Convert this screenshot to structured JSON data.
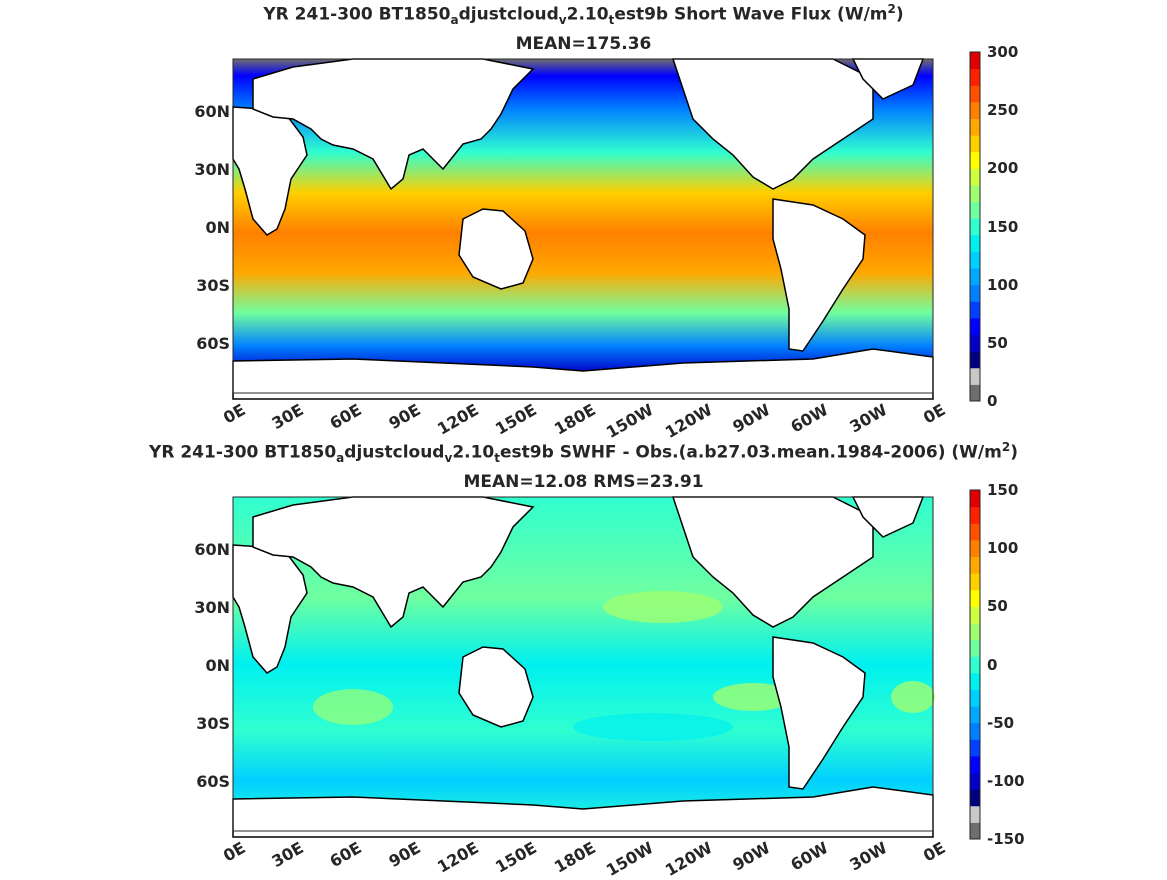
{
  "panels": [
    {
      "title_parts": [
        "YR 241-300 BT1850",
        "a",
        "djustcloud",
        "v",
        "2.10",
        "t",
        "est9b  Short Wave Flux (W/m",
        "2",
        ")"
      ],
      "subtitle": "MEAN=175.36",
      "lat_labels": [
        "60N",
        "30N",
        "0N",
        "30S",
        "60S"
      ],
      "lon_labels": [
        "0E",
        "30E",
        "60E",
        "90E",
        "120E",
        "150E",
        "180E",
        "150W",
        "120W",
        "90W",
        "60W",
        "30W",
        "0E"
      ],
      "colorbar_labels": [
        "300",
        "250",
        "200",
        "150",
        "100",
        "50",
        "0"
      ]
    },
    {
      "title_parts": [
        "YR 241-300 BT1850",
        "a",
        "djustcloud",
        "v",
        "2.10",
        "t",
        "est9b SWHF - Obs.(a.b27.03.mean.1984-2006) (W/m",
        "2",
        ")"
      ],
      "subtitle": "MEAN=12.08 RMS=23.91",
      "lat_labels": [
        "60N",
        "30N",
        "0N",
        "30S",
        "60S"
      ],
      "lon_labels": [
        "0E",
        "30E",
        "60E",
        "90E",
        "120E",
        "150E",
        "180E",
        "150W",
        "120W",
        "90W",
        "60W",
        "30W",
        "0E"
      ],
      "colorbar_labels": [
        "150",
        "100",
        "50",
        "0",
        "-50",
        "-100",
        "-150"
      ]
    }
  ],
  "colors": {
    "colorbar": [
      "#6e6e6e",
      "#c8c8c8",
      "#00007f",
      "#0000c8",
      "#0000ff",
      "#0040ff",
      "#0080ff",
      "#00a8ff",
      "#00d0ff",
      "#00f0f0",
      "#30ffd0",
      "#70ffa0",
      "#a0ff70",
      "#d0ff40",
      "#ffff00",
      "#ffd000",
      "#ffa800",
      "#ff8000",
      "#ff5000",
      "#ff2000",
      "#e00000"
    ],
    "land": "#ffffff",
    "coast": "#000000"
  }
}
